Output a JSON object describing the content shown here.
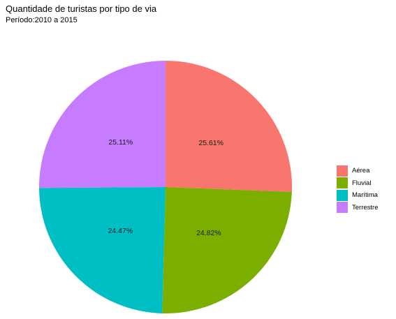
{
  "chart_data": {
    "type": "pie",
    "title": "Quantidade de turistas por tipo de via",
    "subtitle": "Período:2010 a 2015",
    "slices": [
      {
        "name": "Aérea",
        "value": 25.61,
        "label": "25.61%",
        "color": "#F8766D"
      },
      {
        "name": "Fluvial",
        "value": 24.82,
        "label": "24.82%",
        "color": "#7CAE00"
      },
      {
        "name": "Marítima",
        "value": 24.47,
        "label": "24.47%",
        "color": "#00BFC4"
      },
      {
        "name": "Terrestre",
        "value": 25.11,
        "label": "25.11%",
        "color": "#C77CFF"
      }
    ],
    "start_angle": "12 o'clock",
    "direction": "clockwise",
    "legend_position": "right"
  }
}
